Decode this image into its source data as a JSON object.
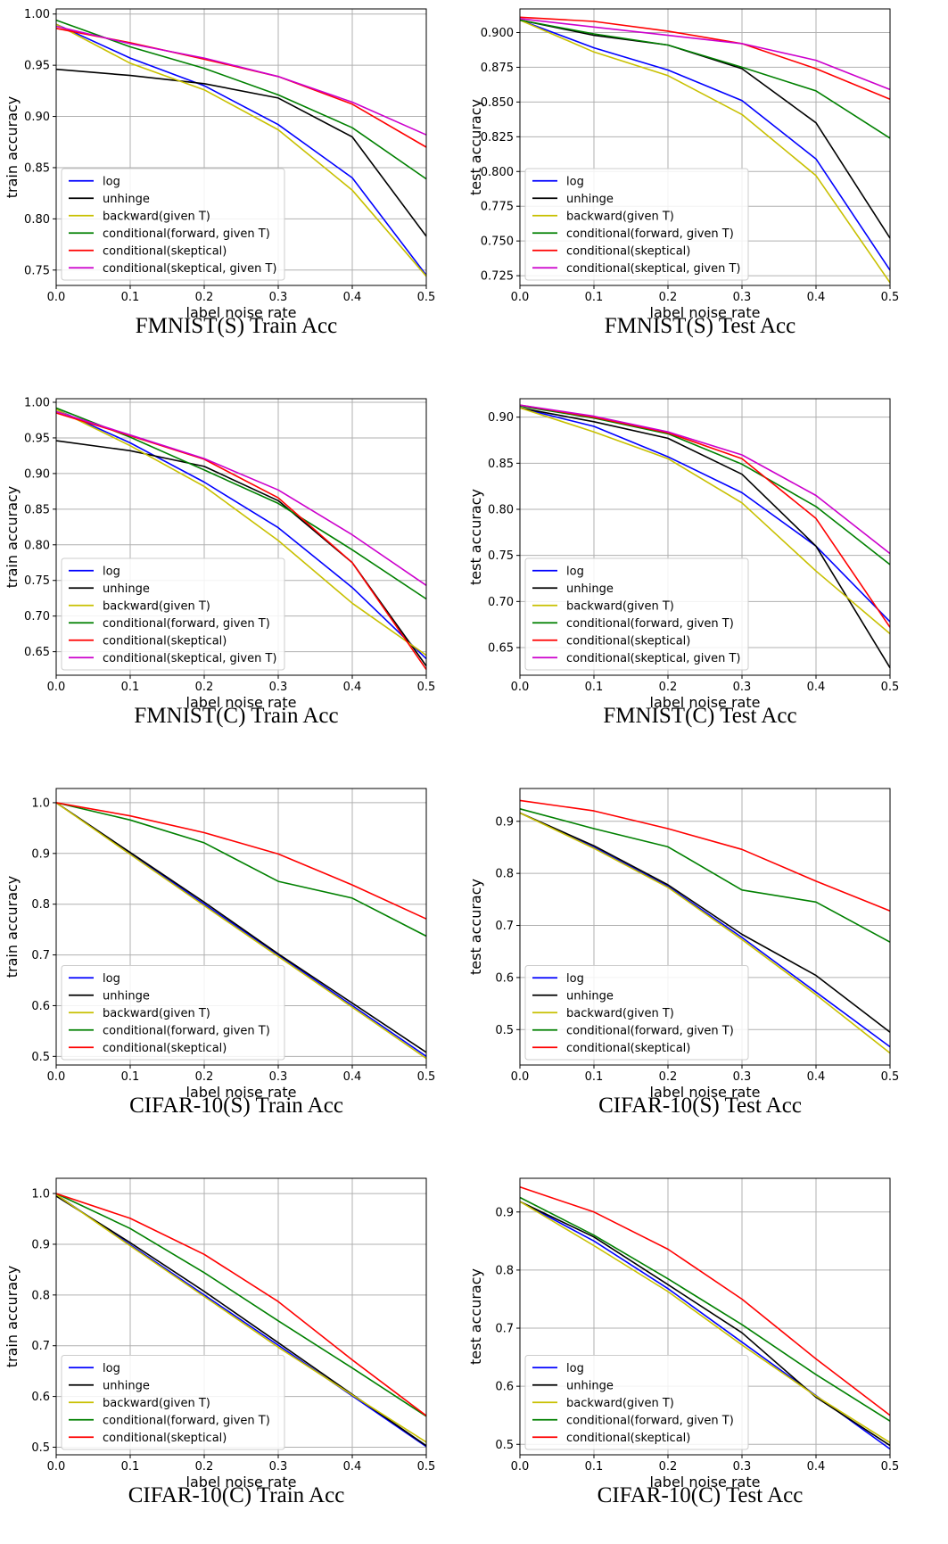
{
  "colors": {
    "log": "#0000ff",
    "unhinge": "#000000",
    "backward": "#c8c000",
    "forward": "#008000",
    "skeptical": "#ff0000",
    "skeptical_given": "#cc00cc",
    "grid": "#b0b0b0"
  },
  "chart_data": [
    {
      "type": "line",
      "caption": "FMNIST(S) Train Acc",
      "xlabel": "label noise rate",
      "ylabel": "train accuracy",
      "xlim": [
        0,
        0.5
      ],
      "ylim": [
        0.735,
        1.005
      ],
      "x": [
        0,
        0.1,
        0.2,
        0.3,
        0.4,
        0.5
      ],
      "xticks": [
        "0.0",
        "0.1",
        "0.2",
        "0.3",
        "0.4",
        "0.5"
      ],
      "yticks": [
        "0.75",
        "0.80",
        "0.85",
        "0.90",
        "0.95",
        "1.00"
      ],
      "ytick_values": [
        0.75,
        0.8,
        0.85,
        0.9,
        0.95,
        1.0
      ],
      "grid": true,
      "legend_position": "lower-left",
      "series": [
        {
          "name": "log",
          "color_key": "log",
          "values": [
            0.99,
            0.957,
            0.93,
            0.892,
            0.84,
            0.745
          ]
        },
        {
          "name": "unhinge",
          "color_key": "unhinge",
          "values": [
            0.946,
            0.94,
            0.932,
            0.918,
            0.88,
            0.783
          ]
        },
        {
          "name": "backward(given T)",
          "color_key": "backward",
          "values": [
            0.99,
            0.952,
            0.926,
            0.887,
            0.828,
            0.744
          ]
        },
        {
          "name": "conditional(forward, given T)",
          "color_key": "forward",
          "values": [
            0.994,
            0.968,
            0.947,
            0.921,
            0.889,
            0.839
          ]
        },
        {
          "name": "conditional(skeptical)",
          "color_key": "skeptical",
          "values": [
            0.986,
            0.972,
            0.956,
            0.939,
            0.912,
            0.87
          ]
        },
        {
          "name": "conditional(skeptical, given T)",
          "color_key": "skeptical_given",
          "values": [
            0.988,
            0.971,
            0.957,
            0.939,
            0.914,
            0.882
          ]
        }
      ]
    },
    {
      "type": "line",
      "caption": "FMNIST(S) Test Acc",
      "xlabel": "label noise rate",
      "ylabel": "test accuracy",
      "xlim": [
        0,
        0.5
      ],
      "ylim": [
        0.718,
        0.917
      ],
      "x": [
        0,
        0.1,
        0.2,
        0.3,
        0.4,
        0.5
      ],
      "xticks": [
        "0.0",
        "0.1",
        "0.2",
        "0.3",
        "0.4",
        "0.5"
      ],
      "yticks": [
        "0.725",
        "0.750",
        "0.775",
        "0.800",
        "0.825",
        "0.850",
        "0.875",
        "0.900"
      ],
      "ytick_values": [
        0.725,
        0.75,
        0.775,
        0.8,
        0.825,
        0.85,
        0.875,
        0.9
      ],
      "grid": true,
      "legend_position": "lower-left",
      "series": [
        {
          "name": "log",
          "color_key": "log",
          "values": [
            0.909,
            0.889,
            0.873,
            0.851,
            0.809,
            0.729
          ]
        },
        {
          "name": "unhinge",
          "color_key": "unhinge",
          "values": [
            0.909,
            0.898,
            0.891,
            0.874,
            0.835,
            0.752
          ]
        },
        {
          "name": "backward(given T)",
          "color_key": "backward",
          "values": [
            0.909,
            0.886,
            0.869,
            0.841,
            0.797,
            0.72
          ]
        },
        {
          "name": "conditional(forward, given T)",
          "color_key": "forward",
          "values": [
            0.909,
            0.899,
            0.891,
            0.875,
            0.858,
            0.824
          ]
        },
        {
          "name": "conditional(skeptical)",
          "color_key": "skeptical",
          "values": [
            0.911,
            0.908,
            0.901,
            0.892,
            0.874,
            0.852
          ]
        },
        {
          "name": "conditional(skeptical, given T)",
          "color_key": "skeptical_given",
          "values": [
            0.91,
            0.904,
            0.898,
            0.892,
            0.88,
            0.859
          ]
        }
      ]
    },
    {
      "type": "line",
      "caption": "FMNIST(C) Train Acc",
      "xlabel": "label noise rate",
      "ylabel": "train accuracy",
      "xlim": [
        0,
        0.5
      ],
      "ylim": [
        0.617,
        1.005
      ],
      "x": [
        0,
        0.1,
        0.2,
        0.3,
        0.4,
        0.5
      ],
      "xticks": [
        "0.0",
        "0.1",
        "0.2",
        "0.3",
        "0.4",
        "0.5"
      ],
      "yticks": [
        "0.65",
        "0.70",
        "0.75",
        "0.80",
        "0.85",
        "0.90",
        "0.95",
        "1.00"
      ],
      "ytick_values": [
        0.65,
        0.7,
        0.75,
        0.8,
        0.85,
        0.9,
        0.95,
        1.0
      ],
      "grid": true,
      "legend_position": "lower-left",
      "series": [
        {
          "name": "log",
          "color_key": "log",
          "values": [
            0.99,
            0.943,
            0.888,
            0.824,
            0.74,
            0.64
          ]
        },
        {
          "name": "unhinge",
          "color_key": "unhinge",
          "values": [
            0.946,
            0.932,
            0.91,
            0.862,
            0.775,
            0.63
          ]
        },
        {
          "name": "backward(given T)",
          "color_key": "backward",
          "values": [
            0.99,
            0.939,
            0.882,
            0.806,
            0.718,
            0.645
          ]
        },
        {
          "name": "conditional(forward, given T)",
          "color_key": "forward",
          "values": [
            0.992,
            0.951,
            0.905,
            0.858,
            0.793,
            0.724
          ]
        },
        {
          "name": "conditional(skeptical)",
          "color_key": "skeptical",
          "values": [
            0.985,
            0.953,
            0.92,
            0.866,
            0.775,
            0.625
          ]
        },
        {
          "name": "conditional(skeptical, given T)",
          "color_key": "skeptical_given",
          "values": [
            0.987,
            0.954,
            0.921,
            0.877,
            0.814,
            0.743
          ]
        }
      ]
    },
    {
      "type": "line",
      "caption": "FMNIST(C) Test Acc",
      "xlabel": "label noise rate",
      "ylabel": "test accuracy",
      "xlim": [
        0,
        0.5
      ],
      "ylim": [
        0.62,
        0.92
      ],
      "x": [
        0,
        0.1,
        0.2,
        0.3,
        0.4,
        0.5
      ],
      "xticks": [
        "0.0",
        "0.1",
        "0.2",
        "0.3",
        "0.4",
        "0.5"
      ],
      "yticks": [
        "0.65",
        "0.70",
        "0.75",
        "0.80",
        "0.85",
        "0.90"
      ],
      "ytick_values": [
        0.65,
        0.7,
        0.75,
        0.8,
        0.85,
        0.9
      ],
      "grid": true,
      "legend_position": "lower-left",
      "series": [
        {
          "name": "log",
          "color_key": "log",
          "values": [
            0.91,
            0.89,
            0.857,
            0.818,
            0.76,
            0.678
          ]
        },
        {
          "name": "unhinge",
          "color_key": "unhinge",
          "values": [
            0.91,
            0.895,
            0.877,
            0.838,
            0.76,
            0.628
          ]
        },
        {
          "name": "backward(given T)",
          "color_key": "backward",
          "values": [
            0.91,
            0.884,
            0.855,
            0.807,
            0.733,
            0.665
          ]
        },
        {
          "name": "conditional(forward, given T)",
          "color_key": "forward",
          "values": [
            0.912,
            0.899,
            0.882,
            0.849,
            0.803,
            0.74
          ]
        },
        {
          "name": "conditional(skeptical)",
          "color_key": "skeptical",
          "values": [
            0.913,
            0.9,
            0.883,
            0.855,
            0.79,
            0.672
          ]
        },
        {
          "name": "conditional(skeptical, given T)",
          "color_key": "skeptical_given",
          "values": [
            0.913,
            0.901,
            0.884,
            0.859,
            0.815,
            0.752
          ]
        }
      ]
    },
    {
      "type": "line",
      "caption": "CIFAR-10(S) Train Acc",
      "xlabel": "label noise rate",
      "ylabel": "train accuracy",
      "xlim": [
        0,
        0.5
      ],
      "ylim": [
        0.483,
        1.028
      ],
      "x": [
        0,
        0.1,
        0.2,
        0.3,
        0.4,
        0.5
      ],
      "xticks": [
        "0.0",
        "0.1",
        "0.2",
        "0.3",
        "0.4",
        "0.5"
      ],
      "yticks": [
        "0.5",
        "0.6",
        "0.7",
        "0.8",
        "0.9",
        "1.0"
      ],
      "ytick_values": [
        0.5,
        0.6,
        0.7,
        0.8,
        0.9,
        1.0
      ],
      "grid": true,
      "legend_position": "lower-left",
      "series": [
        {
          "name": "log",
          "color_key": "log",
          "values": [
            1.0,
            0.9,
            0.8,
            0.7,
            0.6,
            0.5
          ]
        },
        {
          "name": "unhinge",
          "color_key": "unhinge",
          "values": [
            1.0,
            0.902,
            0.804,
            0.702,
            0.605,
            0.508
          ]
        },
        {
          "name": "backward(given T)",
          "color_key": "backward",
          "values": [
            1.0,
            0.898,
            0.797,
            0.697,
            0.597,
            0.496
          ]
        },
        {
          "name": "conditional(forward, given T)",
          "color_key": "forward",
          "values": [
            1.0,
            0.966,
            0.921,
            0.845,
            0.812,
            0.737
          ]
        },
        {
          "name": "conditional(skeptical)",
          "color_key": "skeptical",
          "values": [
            1.0,
            0.974,
            0.941,
            0.899,
            0.838,
            0.771
          ]
        }
      ]
    },
    {
      "type": "line",
      "caption": "CIFAR-10(S) Test Acc",
      "xlabel": "label noise rate",
      "ylabel": "test accuracy",
      "xlim": [
        0,
        0.5
      ],
      "ylim": [
        0.432,
        0.963
      ],
      "x": [
        0,
        0.1,
        0.2,
        0.3,
        0.4,
        0.5
      ],
      "xticks": [
        "0.0",
        "0.1",
        "0.2",
        "0.3",
        "0.4",
        "0.5"
      ],
      "yticks": [
        "0.5",
        "0.6",
        "0.7",
        "0.8",
        "0.9"
      ],
      "ytick_values": [
        0.5,
        0.6,
        0.7,
        0.8,
        0.9
      ],
      "grid": true,
      "legend_position": "lower-left",
      "series": [
        {
          "name": "log",
          "color_key": "log",
          "values": [
            0.916,
            0.85,
            0.775,
            0.677,
            0.572,
            0.467
          ]
        },
        {
          "name": "unhinge",
          "color_key": "unhinge",
          "values": [
            0.916,
            0.853,
            0.778,
            0.683,
            0.604,
            0.495
          ]
        },
        {
          "name": "backward(given T)",
          "color_key": "backward",
          "values": [
            0.916,
            0.848,
            0.773,
            0.673,
            0.567,
            0.455
          ]
        },
        {
          "name": "conditional(forward, given T)",
          "color_key": "forward",
          "values": [
            0.924,
            0.886,
            0.851,
            0.768,
            0.745,
            0.668
          ]
        },
        {
          "name": "conditional(skeptical)",
          "color_key": "skeptical",
          "values": [
            0.94,
            0.92,
            0.886,
            0.846,
            0.785,
            0.728
          ]
        }
      ]
    },
    {
      "type": "line",
      "caption": "CIFAR-10(C) Train Acc",
      "xlabel": "label noise rate",
      "ylabel": "train accuracy",
      "xlim": [
        0,
        0.5
      ],
      "ylim": [
        0.485,
        1.03
      ],
      "x": [
        0,
        0.1,
        0.2,
        0.3,
        0.4,
        0.5
      ],
      "xticks": [
        "0.0",
        "0.1",
        "0.2",
        "0.3",
        "0.4",
        "0.5"
      ],
      "yticks": [
        "0.5",
        "0.6",
        "0.7",
        "0.8",
        "0.9",
        "1.0"
      ],
      "ytick_values": [
        0.5,
        0.6,
        0.7,
        0.8,
        0.9,
        1.0
      ],
      "grid": true,
      "legend_position": "lower-left",
      "series": [
        {
          "name": "log",
          "color_key": "log",
          "values": [
            0.998,
            0.899,
            0.8,
            0.701,
            0.601,
            0.501
          ]
        },
        {
          "name": "unhinge",
          "color_key": "unhinge",
          "values": [
            0.995,
            0.903,
            0.807,
            0.706,
            0.604,
            0.503
          ]
        },
        {
          "name": "backward(given T)",
          "color_key": "backward",
          "values": [
            0.998,
            0.897,
            0.797,
            0.697,
            0.603,
            0.51
          ]
        },
        {
          "name": "conditional(forward, given T)",
          "color_key": "forward",
          "values": [
            1.0,
            0.931,
            0.844,
            0.749,
            0.656,
            0.561
          ]
        },
        {
          "name": "conditional(skeptical)",
          "color_key": "skeptical",
          "values": [
            1.0,
            0.951,
            0.88,
            0.787,
            0.672,
            0.562
          ]
        }
      ]
    },
    {
      "type": "line",
      "caption": "CIFAR-10(C) Test Acc",
      "xlabel": "label noise rate",
      "ylabel": "test accuracy",
      "xlim": [
        0,
        0.5
      ],
      "ylim": [
        0.482,
        0.958
      ],
      "x": [
        0,
        0.1,
        0.2,
        0.3,
        0.4,
        0.5
      ],
      "xticks": [
        "0.0",
        "0.1",
        "0.2",
        "0.3",
        "0.4",
        "0.5"
      ],
      "yticks": [
        "0.5",
        "0.6",
        "0.7",
        "0.8",
        "0.9"
      ],
      "ytick_values": [
        0.5,
        0.6,
        0.7,
        0.8,
        0.9
      ],
      "grid": true,
      "legend_position": "lower-left",
      "series": [
        {
          "name": "log",
          "color_key": "log",
          "values": [
            0.918,
            0.85,
            0.768,
            0.676,
            0.584,
            0.492
          ]
        },
        {
          "name": "unhinge",
          "color_key": "unhinge",
          "values": [
            0.918,
            0.857,
            0.775,
            0.692,
            0.581,
            0.498
          ]
        },
        {
          "name": "backward(given T)",
          "color_key": "backward",
          "values": [
            0.918,
            0.842,
            0.763,
            0.671,
            0.583,
            0.503
          ]
        },
        {
          "name": "conditional(forward, given T)",
          "color_key": "forward",
          "values": [
            0.925,
            0.86,
            0.785,
            0.706,
            0.62,
            0.54
          ]
        },
        {
          "name": "conditional(skeptical)",
          "color_key": "skeptical",
          "values": [
            0.943,
            0.9,
            0.836,
            0.75,
            0.647,
            0.55
          ]
        }
      ]
    }
  ]
}
